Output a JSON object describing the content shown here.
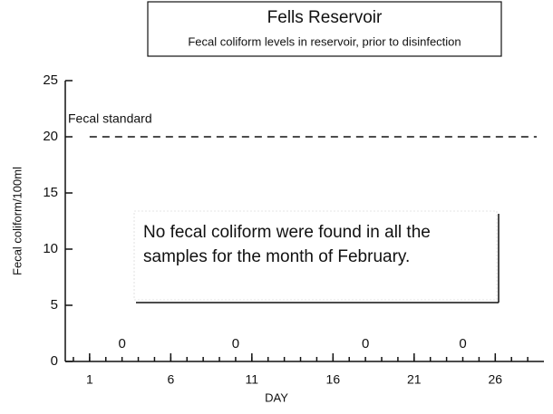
{
  "chart_data": {
    "type": "scatter",
    "title": "Fells Reservoir",
    "subtitle": "Fecal coliform levels in reservoir, prior to disinfection",
    "xlabel": "DAY",
    "ylabel": "Fecal coliform/100ml",
    "x": [
      3,
      10,
      18,
      24
    ],
    "values": [
      0,
      0,
      0,
      0
    ],
    "xlim": [
      -0.5,
      29
    ],
    "ylim": [
      0,
      25
    ],
    "xticks": [
      1,
      6,
      11,
      16,
      21,
      26
    ],
    "yticks": [
      0,
      5,
      10,
      15,
      20,
      25
    ],
    "reference_line": {
      "value": 20,
      "label": "Fecal standard"
    },
    "annotation": [
      "No fecal coliform were found in all the",
      "samples for the month of February."
    ]
  }
}
